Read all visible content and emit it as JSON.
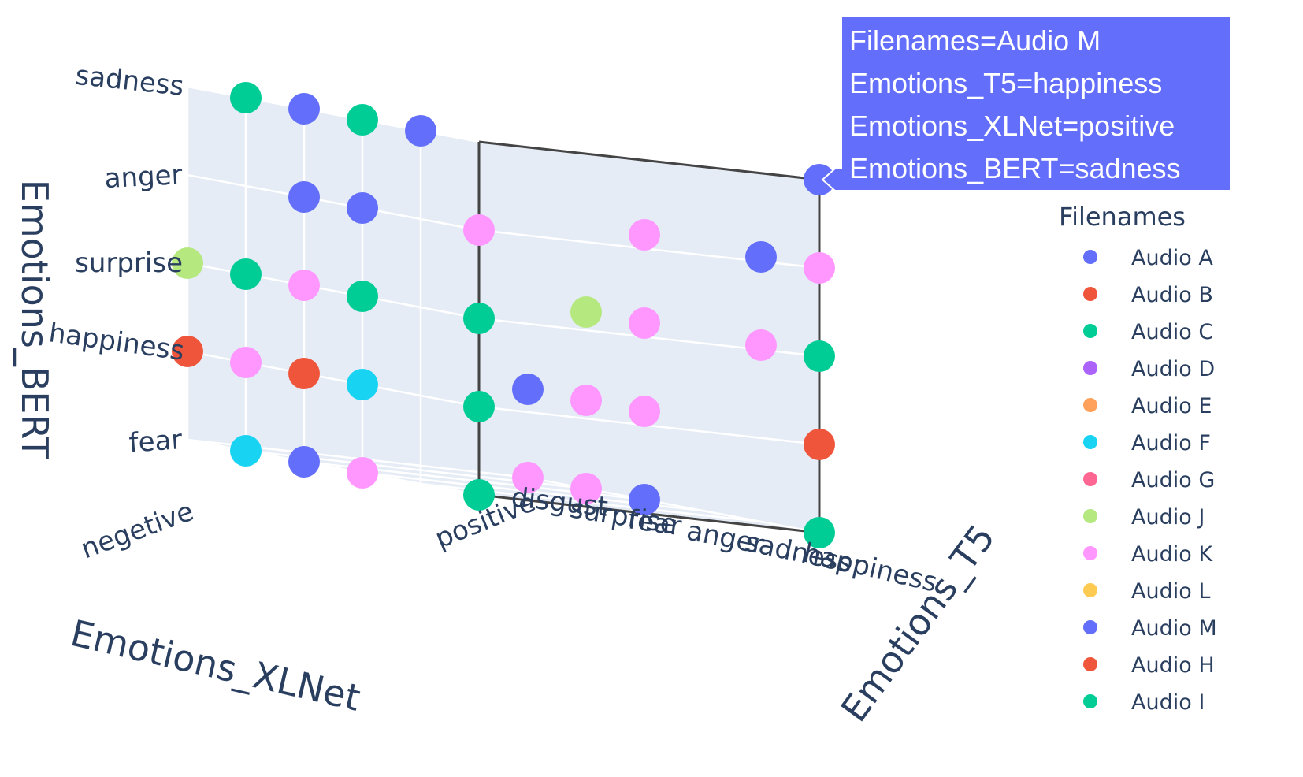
{
  "chart_data": {
    "type": "scatter3d",
    "axes": {
      "x": {
        "title": "Emotions_XLNet",
        "categories": [
          "negetive",
          "positive"
        ]
      },
      "y": {
        "title": "Emotions_T5",
        "categories": [
          "disgust",
          "surprise",
          "fear",
          "anger",
          "sadness",
          "happiness"
        ]
      },
      "z": {
        "title": "Emotions_BERT",
        "categories": [
          "fear",
          "happiness",
          "surprise",
          "anger",
          "sadness"
        ]
      }
    },
    "grid": true,
    "legend": {
      "title": "Filenames",
      "placement": "right",
      "entries": [
        {
          "name": "Audio A",
          "color": "#636efa"
        },
        {
          "name": "Audio B",
          "color": "#EF553B"
        },
        {
          "name": "Audio C",
          "color": "#00cc96"
        },
        {
          "name": "Audio D",
          "color": "#ab63fa"
        },
        {
          "name": "Audio E",
          "color": "#FFA15A"
        },
        {
          "name": "Audio F",
          "color": "#19d3f3"
        },
        {
          "name": "Audio G",
          "color": "#FF6692"
        },
        {
          "name": "Audio J",
          "color": "#B6E880"
        },
        {
          "name": "Audio K",
          "color": "#FF97FF"
        },
        {
          "name": "Audio L",
          "color": "#FECB52"
        },
        {
          "name": "Audio M",
          "color": "#636efa"
        },
        {
          "name": "Audio H",
          "color": "#EF553B"
        },
        {
          "name": "Audio I",
          "color": "#00cc96"
        }
      ]
    },
    "points": [
      {
        "series": "Audio C",
        "xlnet": "negetive",
        "t5": "surprise",
        "bert": "sadness"
      },
      {
        "series": "Audio A",
        "xlnet": "negetive",
        "t5": "fear",
        "bert": "sadness"
      },
      {
        "series": "Audio C",
        "xlnet": "negetive",
        "t5": "anger",
        "bert": "sadness"
      },
      {
        "series": "Audio A",
        "xlnet": "negetive",
        "t5": "sadness",
        "bert": "sadness"
      },
      {
        "series": "Audio A",
        "xlnet": "negetive",
        "t5": "fear",
        "bert": "anger"
      },
      {
        "series": "Audio A",
        "xlnet": "negetive",
        "t5": "anger",
        "bert": "anger"
      },
      {
        "series": "Audio K",
        "xlnet": "negetive",
        "t5": "happiness",
        "bert": "anger"
      },
      {
        "series": "Audio J",
        "xlnet": "negetive",
        "t5": "disgust",
        "bert": "surprise"
      },
      {
        "series": "Audio C",
        "xlnet": "negetive",
        "t5": "surprise",
        "bert": "surprise"
      },
      {
        "series": "Audio K",
        "xlnet": "negetive",
        "t5": "fear",
        "bert": "surprise"
      },
      {
        "series": "Audio C",
        "xlnet": "negetive",
        "t5": "anger",
        "bert": "surprise"
      },
      {
        "series": "Audio C",
        "xlnet": "negetive",
        "t5": "happiness",
        "bert": "surprise"
      },
      {
        "series": "Audio F",
        "xlnet": "negetive",
        "t5": "anger",
        "bert": "happiness"
      },
      {
        "series": "Audio C",
        "xlnet": "negetive",
        "t5": "happiness",
        "bert": "happiness"
      },
      {
        "series": "Audio B",
        "xlnet": "negetive",
        "t5": "disgust",
        "bert": "happiness"
      },
      {
        "series": "Audio K",
        "xlnet": "negetive",
        "t5": "surprise",
        "bert": "happiness"
      },
      {
        "series": "Audio H",
        "xlnet": "negetive",
        "t5": "fear",
        "bert": "happiness"
      },
      {
        "series": "Audio F",
        "xlnet": "negetive",
        "t5": "surprise",
        "bert": "fear"
      },
      {
        "series": "Audio A",
        "xlnet": "negetive",
        "t5": "fear",
        "bert": "fear"
      },
      {
        "series": "Audio K",
        "xlnet": "negetive",
        "t5": "anger",
        "bert": "fear"
      },
      {
        "series": "Audio C",
        "xlnet": "negetive",
        "t5": "happiness",
        "bert": "fear"
      },
      {
        "series": "Audio M",
        "xlnet": "positive",
        "t5": "happiness",
        "bert": "sadness"
      },
      {
        "series": "Audio K",
        "xlnet": "positive",
        "t5": "fear",
        "bert": "anger"
      },
      {
        "series": "Audio A",
        "xlnet": "positive",
        "t5": "sadness",
        "bert": "anger"
      },
      {
        "series": "Audio K",
        "xlnet": "positive",
        "t5": "happiness",
        "bert": "anger"
      },
      {
        "series": "Audio J",
        "xlnet": "positive",
        "t5": "surprise",
        "bert": "surprise"
      },
      {
        "series": "Audio K",
        "xlnet": "positive",
        "t5": "fear",
        "bert": "surprise"
      },
      {
        "series": "Audio K",
        "xlnet": "positive",
        "t5": "sadness",
        "bert": "surprise"
      },
      {
        "series": "Audio I",
        "xlnet": "positive",
        "t5": "happiness",
        "bert": "surprise"
      },
      {
        "series": "Audio H",
        "xlnet": "positive",
        "t5": "happiness",
        "bert": "happiness"
      },
      {
        "series": "Audio A",
        "xlnet": "positive",
        "t5": "disgust",
        "bert": "happiness"
      },
      {
        "series": "Audio K",
        "xlnet": "positive",
        "t5": "surprise",
        "bert": "happiness"
      },
      {
        "series": "Audio K",
        "xlnet": "positive",
        "t5": "fear",
        "bert": "happiness"
      },
      {
        "series": "Audio I",
        "xlnet": "positive",
        "t5": "happiness",
        "bert": "fear"
      },
      {
        "series": "Audio K",
        "xlnet": "positive",
        "t5": "disgust",
        "bert": "fear"
      },
      {
        "series": "Audio K",
        "xlnet": "positive",
        "t5": "surprise",
        "bert": "fear"
      },
      {
        "series": "Audio A",
        "xlnet": "positive",
        "t5": "fear",
        "bert": "fear"
      }
    ],
    "hover": {
      "lines": [
        "Filenames=Audio M",
        "Emotions_T5=happiness",
        "Emotions_XLNet=positive",
        "Emotions_BERT=sadness"
      ],
      "color": "#636efa"
    },
    "colors": {
      "scene_bg": "#e5ecf6",
      "grid": "#ffffff",
      "text": "#2a3f5f",
      "spike": "#444444"
    }
  }
}
